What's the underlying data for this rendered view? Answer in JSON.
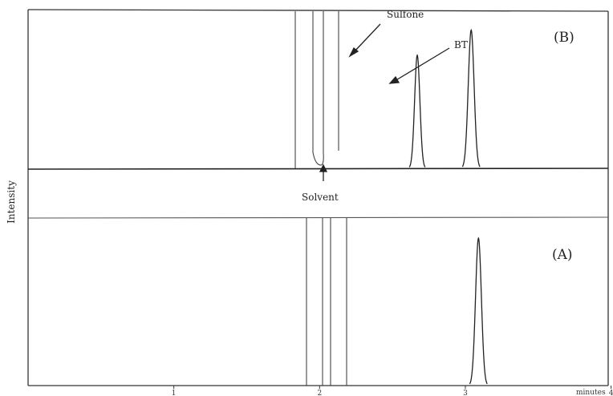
{
  "chart_data": [
    {
      "type": "line",
      "panel_label": "(B)",
      "annotations": [
        "Sulfone",
        "BT",
        "Solvent"
      ],
      "x_range": [
        0,
        3.98
      ],
      "series": [
        {
          "peaks": [
            {
              "x": 2.67,
              "height": 0.72,
              "width": 0.018
            },
            {
              "x": 3.04,
              "height": 0.88,
              "width": 0.02
            }
          ]
        }
      ]
    },
    {
      "type": "line",
      "panel_label": "(A)",
      "x_range": [
        0,
        3.98
      ],
      "series": [
        {
          "peaks": [
            {
              "x": 3.09,
              "height": 0.88,
              "width": 0.02
            }
          ]
        }
      ]
    }
  ],
  "axis": {
    "ylabel": "Intensity",
    "xlabel": "minutes",
    "xticks": [
      "1",
      "2",
      "3",
      "4"
    ],
    "xtick_values": [
      1,
      2,
      3,
      4
    ]
  }
}
